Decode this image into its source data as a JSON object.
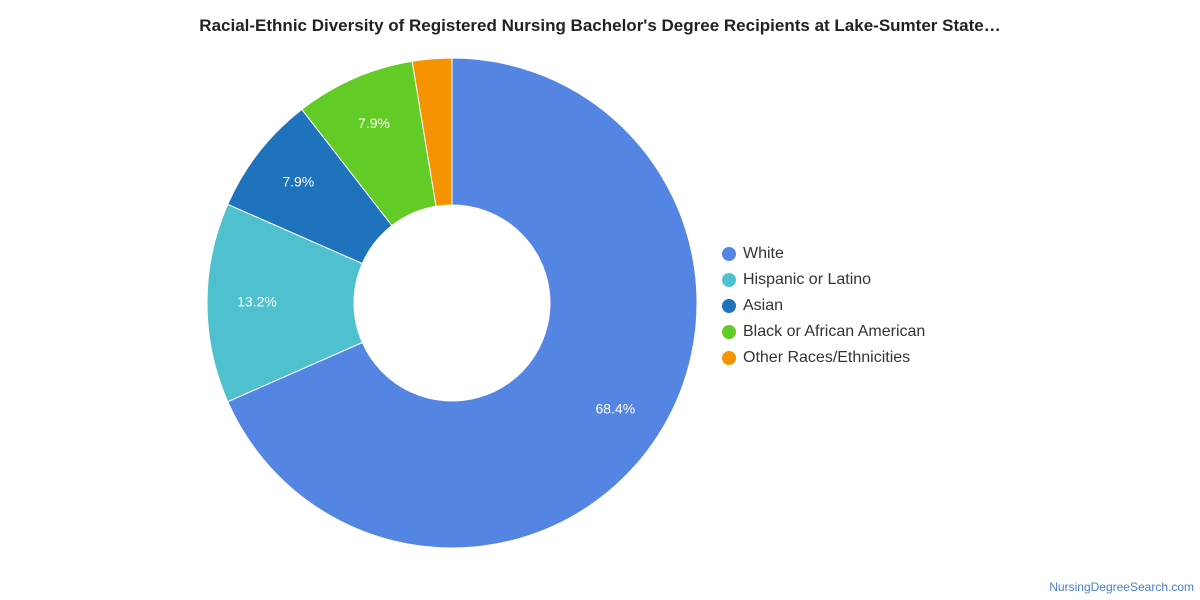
{
  "chart_data": {
    "type": "pie",
    "title": "Racial-Ethnic Diversity of Registered Nursing Bachelor's Degree Recipients at Lake-Sumter State…",
    "donut": true,
    "legend_position": "right",
    "categories": [
      "White",
      "Hispanic or Latino",
      "Asian",
      "Black or African American",
      "Other Races/Ethnicities"
    ],
    "values": [
      68.4,
      13.2,
      7.9,
      7.9,
      2.6
    ],
    "data_labels": [
      "68.4%",
      "13.2%",
      "7.9%",
      "7.9%",
      ""
    ],
    "colors": [
      "#5585e3",
      "#4fc1ce",
      "#1f72bc",
      "#63cb25",
      "#f59200"
    ]
  },
  "footer": {
    "source": "NursingDegreeSearch.com"
  }
}
